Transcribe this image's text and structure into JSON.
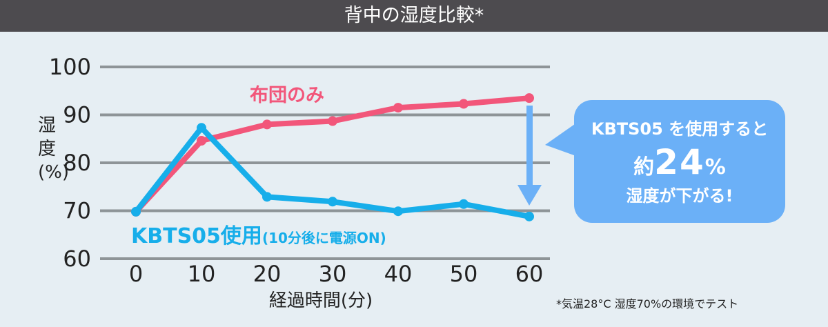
{
  "header": {
    "title": "背中の湿度比較*"
  },
  "callout": {
    "line1": "KBTS05 を使用すると",
    "prefix": "約",
    "value": "24",
    "unit": "%",
    "line3": "湿度が下がる!"
  },
  "footnote": "*気温28°C 湿度70%の環境でテスト",
  "colors": {
    "pink": "#f2567a",
    "blue": "#17aeea",
    "arrow": "#6bb0f7",
    "grid": "#8e9497",
    "bg": "#e6eef3",
    "header": "#4d4b4f"
  },
  "chart_data": {
    "type": "line",
    "title": "背中の湿度比較*",
    "xlabel": "経過時間(分)",
    "ylabel": "湿度(%)",
    "x": [
      0,
      10,
      20,
      30,
      40,
      50,
      60
    ],
    "xticks": [
      "0",
      "10",
      "20",
      "30",
      "40",
      "50",
      "60"
    ],
    "yticks": [
      "100",
      "90",
      "80",
      "70",
      "60"
    ],
    "ylim": [
      60,
      100
    ],
    "grid": true,
    "series": [
      {
        "name": "布団のみ",
        "color": "#f2567a",
        "values": [
          69.8,
          84.6,
          88.0,
          88.7,
          91.5,
          92.3,
          93.5
        ]
      },
      {
        "name": "KBTS05使用",
        "name_suffix": "(10分後に電源ON)",
        "color": "#17aeea",
        "values": [
          69.8,
          87.3,
          72.9,
          71.9,
          69.9,
          71.4,
          68.8
        ]
      }
    ],
    "annotation": "KBTS05 を使用すると 約24% 湿度が下がる!"
  }
}
